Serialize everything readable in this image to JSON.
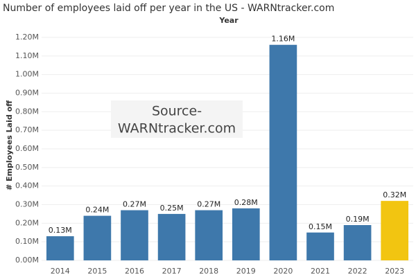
{
  "chart_data": {
    "type": "bar",
    "title": "Number of employees laid off per year in the US - WARNtracker.com",
    "x_label": "Year",
    "y_label": "# Employees Laid off",
    "annotation": [
      "Source-",
      "WARNtracker.com"
    ],
    "categories": [
      "2014",
      "2015",
      "2016",
      "2017",
      "2018",
      "2019",
      "2020",
      "2021",
      "2022",
      "2023"
    ],
    "values": [
      130000,
      240000,
      270000,
      250000,
      270000,
      280000,
      1160000,
      150000,
      190000,
      320000
    ],
    "value_labels": [
      "0.13M",
      "0.24M",
      "0.27M",
      "0.25M",
      "0.27M",
      "0.28M",
      "1.16M",
      "0.15M",
      "0.19M",
      "0.32M"
    ],
    "colors": [
      "#3e78ab",
      "#3e78ab",
      "#3e78ab",
      "#3e78ab",
      "#3e78ab",
      "#3e78ab",
      "#3e78ab",
      "#3e78ab",
      "#3e78ab",
      "#f2c511"
    ],
    "ylim": [
      0,
      1200000
    ],
    "yticks": [
      {
        "value": 0,
        "label": "0.00M"
      },
      {
        "value": 100000,
        "label": "0.10M"
      },
      {
        "value": 200000,
        "label": "0.20M"
      },
      {
        "value": 300000,
        "label": "0.30M"
      },
      {
        "value": 400000,
        "label": "0.40M"
      },
      {
        "value": 500000,
        "label": "0.50M"
      },
      {
        "value": 600000,
        "label": "0.60M"
      },
      {
        "value": 700000,
        "label": "0.70M"
      },
      {
        "value": 800000,
        "label": "0.80M"
      },
      {
        "value": 900000,
        "label": "0.90M"
      },
      {
        "value": 1000000,
        "label": "1.00M"
      },
      {
        "value": 1100000,
        "label": "1.10M"
      },
      {
        "value": 1200000,
        "label": "1.20M"
      }
    ],
    "grid": true
  }
}
